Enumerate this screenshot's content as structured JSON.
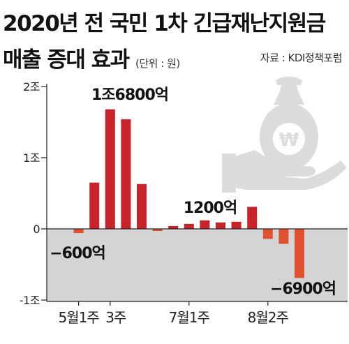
{
  "title": {
    "line1": "2020년 전 국민 1차 긴급재난지원금",
    "line2": "매출 증대 효과",
    "unit": "(단위 : 원)",
    "source": "자료 : KDI정책포럼"
  },
  "icon": "money-bag-on-hand-icon",
  "colors": {
    "positive": "#c8232a",
    "negative": "#e0522f",
    "negative_area": "#d4d4d4",
    "icon": "#dcdcdc",
    "axis": "#222222"
  },
  "chart_data": {
    "type": "bar",
    "title": "2020년 전 국민 1차 긴급재난지원금 매출 증대 효과",
    "unit": "원",
    "yticks": [
      {
        "value": 20000,
        "label": "2조"
      },
      {
        "value": 10000,
        "label": "1조"
      },
      {
        "value": 0,
        "label": "0"
      },
      {
        "value": -10000,
        "label": "-1조"
      }
    ],
    "ylim": [
      -10000,
      20000
    ],
    "y_unit_note": "values in 억원",
    "category_labels": [
      {
        "index": 1,
        "label": "5월1주"
      },
      {
        "index": 3,
        "label": "3주"
      },
      {
        "index": 8,
        "label": "7월1주"
      },
      {
        "index": 13,
        "label": "8월2주"
      }
    ],
    "values": [
      0,
      -600,
      6500,
      16800,
      15400,
      6300,
      -300,
      400,
      700,
      1200,
      900,
      1000,
      3100,
      -1400,
      -2100,
      -6900
    ],
    "annotations": [
      {
        "index": 1,
        "text": "−600억"
      },
      {
        "index": 3,
        "text": "1조6800억"
      },
      {
        "index": 9,
        "text": "1200억"
      },
      {
        "index": 15,
        "text": "−6900억"
      }
    ]
  }
}
